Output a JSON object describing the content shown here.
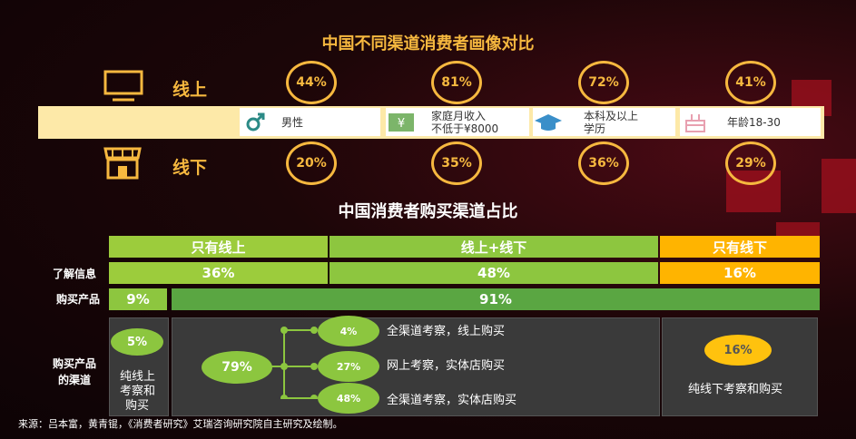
{
  "title_profile": "中国不同渠道消费者画像对比",
  "row_online": {
    "label": "线上",
    "values": [
      "44%",
      "81%",
      "72%",
      "41%"
    ]
  },
  "row_offline": {
    "label": "线下",
    "values": [
      "20%",
      "35%",
      "36%",
      "29%"
    ]
  },
  "attributes": [
    {
      "icon": "male-icon",
      "label": "男性"
    },
    {
      "icon": "money-icon",
      "label_line1": "家庭月收入",
      "label_line2": "不低于¥8000"
    },
    {
      "icon": "graduation-cap-icon",
      "label_line1": "本科及以上",
      "label_line2": "学历"
    },
    {
      "icon": "birthday-cake-icon",
      "label": "年龄18-30"
    }
  ],
  "title_channel": "中国消费者购买渠道占比",
  "channel_headers": [
    "只有线上",
    "线上+线下",
    "只有线下"
  ],
  "info_row": {
    "label": "了解信息",
    "values": [
      "36%",
      "48%",
      "16%"
    ]
  },
  "purchase_row": {
    "label": "购买产品",
    "values": [
      "9%",
      "91%"
    ]
  },
  "channel_section": {
    "label_line1": "购买产品",
    "label_line2": "的渠道",
    "online_only": {
      "value": "5%",
      "text": [
        "纯线上",
        "考察和",
        "购买"
      ]
    },
    "mixed": {
      "total": "79%",
      "items": [
        {
          "value": "4%",
          "text": "全渠道考察，线上购买"
        },
        {
          "value": "27%",
          "text": "网上考察，实体店购买"
        },
        {
          "value": "48%",
          "text": "全渠道考察，实体店购买"
        }
      ]
    },
    "offline_only": {
      "value": "16%",
      "text": "纯线下考察和购买"
    }
  },
  "footer": "来源：吕本富，黄青锟，《消费者研究》艾瑞咨询研究院自主研究及绘制。",
  "colors": {
    "gold": "#f6b83f",
    "green_light": "#9ccc3c",
    "green_mid": "#8dc63f",
    "green_dark": "#5aa642",
    "orange": "#ffb400"
  }
}
